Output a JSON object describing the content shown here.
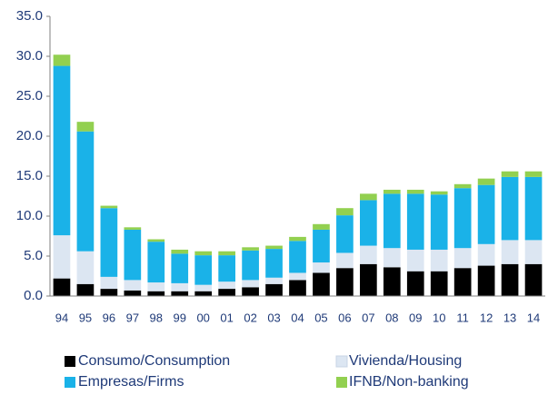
{
  "chart_data": {
    "type": "stacked_bar",
    "categories": [
      "94",
      "95",
      "96",
      "97",
      "98",
      "99",
      "00",
      "01",
      "02",
      "03",
      "04",
      "05",
      "06",
      "07",
      "08",
      "09",
      "10",
      "11",
      "12",
      "13",
      "14"
    ],
    "series": [
      {
        "name": "Consumo/Consumption",
        "color": "#000000",
        "values": [
          2.2,
          1.5,
          0.9,
          0.7,
          0.6,
          0.6,
          0.6,
          0.9,
          1.1,
          1.5,
          2.0,
          2.9,
          3.5,
          4.0,
          3.6,
          3.1,
          3.1,
          3.5,
          3.8,
          4.0,
          4.0
        ]
      },
      {
        "name": "Vivienda/Housing",
        "color": "#dce6f2",
        "values": [
          5.4,
          4.1,
          1.5,
          1.3,
          1.1,
          1.0,
          0.8,
          0.9,
          0.9,
          0.8,
          0.9,
          1.3,
          1.9,
          2.3,
          2.4,
          2.7,
          2.7,
          2.5,
          2.7,
          3.0,
          3.0
        ]
      },
      {
        "name": "Empresas/Firms",
        "color": "#1ab2e8",
        "values": [
          21.2,
          15.0,
          8.6,
          6.3,
          5.1,
          3.7,
          3.7,
          3.3,
          3.7,
          3.6,
          4.0,
          4.1,
          4.7,
          5.7,
          6.8,
          7.0,
          6.9,
          7.5,
          7.4,
          7.9,
          7.9
        ]
      },
      {
        "name": "IFNB/Non-banking",
        "color": "#92d050",
        "values": [
          1.4,
          1.2,
          0.3,
          0.3,
          0.3,
          0.5,
          0.5,
          0.5,
          0.4,
          0.4,
          0.5,
          0.7,
          0.9,
          0.8,
          0.5,
          0.5,
          0.4,
          0.5,
          0.8,
          0.7,
          0.7
        ]
      }
    ],
    "ylim": [
      0,
      35
    ],
    "yticks": [
      {
        "value": 0,
        "label": "0.0"
      },
      {
        "value": 5,
        "label": "5.0"
      },
      {
        "value": 10,
        "label": "10.0"
      },
      {
        "value": 15,
        "label": "15.0"
      },
      {
        "value": 20,
        "label": "20.0"
      },
      {
        "value": 25,
        "label": "25.0"
      },
      {
        "value": 30,
        "label": "30.0"
      },
      {
        "value": 35,
        "label": "35.0"
      }
    ],
    "grid": false,
    "legend": "bottom"
  }
}
